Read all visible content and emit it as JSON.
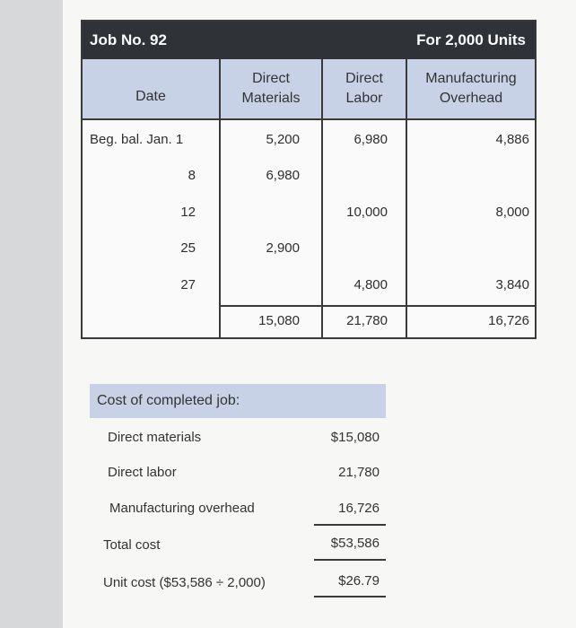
{
  "job_card": {
    "job_no": "Job No. 92",
    "units": "For 2,000 Units",
    "columns": {
      "date": "Date",
      "dm_1": "Direct",
      "dm_2": "Materials",
      "dl_1": "Direct",
      "dl_2": "Labor",
      "mo_1": "Manufacturing",
      "mo_2": "Overhead"
    },
    "rows": [
      {
        "date": "Beg. bal. Jan. 1",
        "dm": "5,200",
        "dl": "6,980",
        "mo": "4,886"
      },
      {
        "date": "8",
        "dm": "6,980",
        "dl": "",
        "mo": ""
      },
      {
        "date": "12",
        "dm": "",
        "dl": "10,000",
        "mo": "8,000"
      },
      {
        "date": "25",
        "dm": "2,900",
        "dl": "",
        "mo": ""
      },
      {
        "date": "27",
        "dm": "",
        "dl": "4,800",
        "mo": "3,840"
      }
    ],
    "totals": {
      "dm": "15,080",
      "dl": "21,780",
      "mo": "16,726"
    }
  },
  "cost_summary": {
    "heading": "Cost of completed job:",
    "lines": [
      {
        "label": "Direct materials",
        "value": "$15,080"
      },
      {
        "label": "Direct labor",
        "value": "21,780"
      },
      {
        "label": "Manufacturing overhead",
        "value": "16,726"
      },
      {
        "label": "Total cost",
        "value": "$53,586"
      },
      {
        "label": "Unit cost ($53,586 ÷ 2,000)",
        "value": "$26.79"
      }
    ]
  }
}
